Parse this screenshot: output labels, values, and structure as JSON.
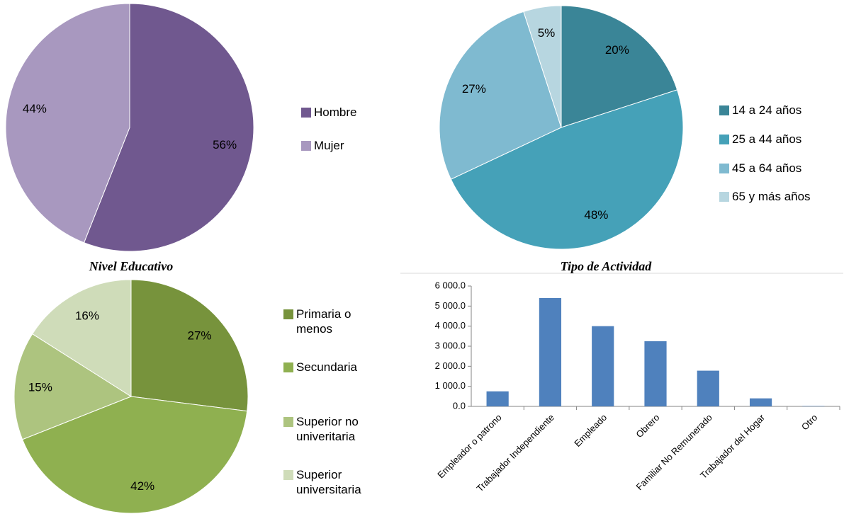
{
  "chart_data": [
    {
      "type": "pie",
      "categories": [
        "Hombre",
        "Mujer"
      ],
      "values": [
        56,
        44
      ],
      "value_labels": [
        "56%",
        "44%"
      ],
      "colors": [
        "#70588f",
        "#a898bf"
      ],
      "legend": "right"
    },
    {
      "type": "pie",
      "categories": [
        "14 a 24 años",
        "25 a 44 años",
        "45  a 64 años",
        "65 y más años"
      ],
      "values": [
        20,
        48,
        27,
        5
      ],
      "value_labels": [
        "20%",
        "48%",
        "27%",
        "5%"
      ],
      "colors": [
        "#3a8597",
        "#45a1b8",
        "#7fbad0",
        "#b7d6e0"
      ],
      "legend": "right"
    },
    {
      "type": "pie",
      "title": "Nivel Educativo",
      "categories": [
        "Primaria o menos",
        "Secundaria",
        "Superior no univeritaria",
        "Superior universitaria"
      ],
      "values": [
        27,
        42,
        15,
        16
      ],
      "value_labels": [
        "27%",
        "42%",
        "15%",
        "16%"
      ],
      "colors": [
        "#77933c",
        "#8fb050",
        "#adc47f",
        "#cfdcb9"
      ],
      "legend": "right"
    },
    {
      "type": "bar",
      "title": "Tipo de Actividad",
      "categories": [
        "Empleador o patrono",
        "Trabajador Independiente",
        "Empleado",
        "Obrero",
        "Familiar No Remunerado",
        "Trabajador del Hogar",
        "Otro"
      ],
      "values": [
        750,
        5400,
        4000,
        3250,
        1780,
        400,
        20
      ],
      "color": "#4f81bd",
      "ylim": [
        0,
        6000
      ],
      "yticks": [
        {
          "value": 0,
          "label": "0.0"
        },
        {
          "value": 1000,
          "label": "1 000.0"
        },
        {
          "value": 2000,
          "label": "2 000.0"
        },
        {
          "value": 3000,
          "label": "3 000.0"
        },
        {
          "value": 4000,
          "label": "4 000.0"
        },
        {
          "value": 5000,
          "label": "5 000.0"
        },
        {
          "value": 6000,
          "label": "6 000.0"
        }
      ],
      "grid": false
    }
  ]
}
